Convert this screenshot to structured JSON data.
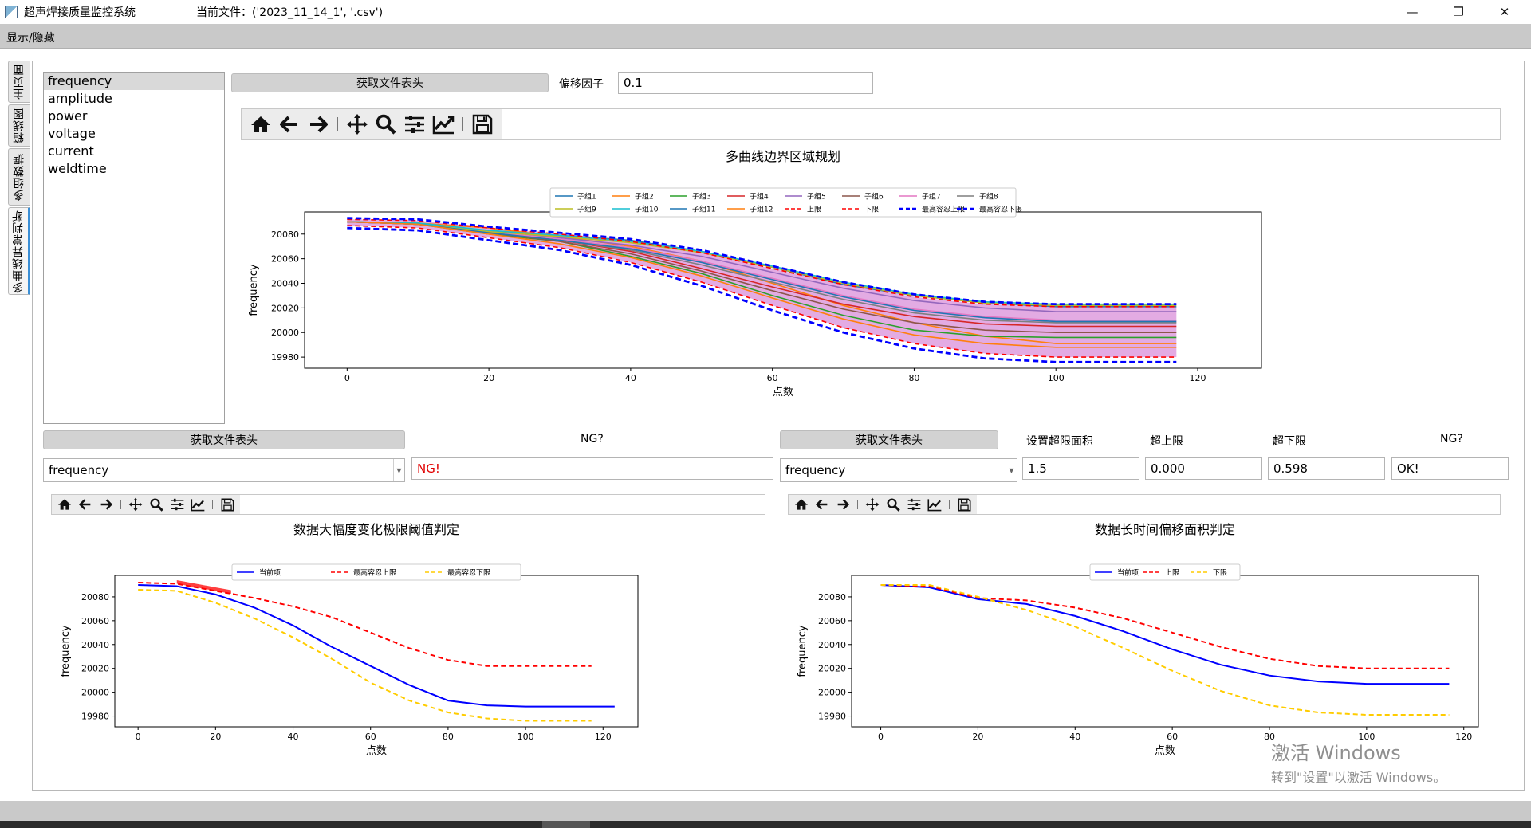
{
  "window": {
    "app_title": "超声焊接质量监控系统",
    "current_file": "当前文件：('2023_11_14_1', '.csv')",
    "minimize": "—",
    "restore": "❐",
    "close": "✕"
  },
  "menu": {
    "toggle": "显示/隐藏"
  },
  "tabs": [
    "主页面",
    "箱线图",
    "多组数据",
    "多曲线异常判断"
  ],
  "params": [
    "frequency",
    "amplitude",
    "power",
    "voltage",
    "current",
    "weldtime"
  ],
  "top": {
    "header_button": "获取文件表头",
    "offset_label": "偏移因子",
    "offset_value": "0.1"
  },
  "bottom_left": {
    "header_button": "获取文件表头",
    "ng_label": "NG?",
    "combo_value": "frequency",
    "ng_value": "NG!"
  },
  "bottom_right": {
    "header_button": "获取文件表头",
    "area_label": "设置超限面积",
    "upper_label": "超上限",
    "lower_label": "超下限",
    "ng_label": "NG?",
    "combo_value": "frequency",
    "area_value": "1.5",
    "upper_value": "0.000",
    "lower_value": "0.598",
    "ng_value": "OK!"
  },
  "watermark": {
    "line1": "激活 Windows",
    "line2": "转到\"设置\"以激活 Windows。"
  },
  "chart_data": [
    {
      "type": "line",
      "title": "多曲线边界区域规划",
      "xlabel": "点数",
      "ylabel": "frequency",
      "xlim": [
        -6,
        129
      ],
      "ylim": [
        19971,
        20098
      ],
      "xticks": [
        0,
        20,
        40,
        60,
        80,
        100,
        120
      ],
      "yticks": [
        19980,
        20000,
        20020,
        20040,
        20060,
        20080
      ],
      "legend": "top-center",
      "fill_between_limits_color": "#cc66cc",
      "series": [
        {
          "name": "子组1",
          "color": "#1f77b4",
          "x": [
            0,
            10,
            20,
            30,
            40,
            50,
            60,
            70,
            80,
            90,
            100,
            117
          ],
          "y": [
            20090,
            20089,
            20082,
            20079,
            20075,
            20066,
            20053,
            20039,
            20030,
            20024,
            20021,
            20021
          ]
        },
        {
          "name": "子组2",
          "color": "#ff7f0e",
          "x": [
            0,
            10,
            20,
            30,
            40,
            50,
            60,
            70,
            80,
            90,
            100,
            117
          ],
          "y": [
            20090,
            20089,
            20085,
            20078,
            20070,
            20058,
            20040,
            20022,
            20008,
            19997,
            19991,
            19991
          ]
        },
        {
          "name": "子组3",
          "color": "#2ca02c",
          "x": [
            0,
            10,
            20,
            30,
            40,
            50,
            60,
            70,
            80,
            90,
            100,
            117
          ],
          "y": [
            20090,
            20088,
            20080,
            20074,
            20062,
            20048,
            20030,
            20014,
            20002,
            19997,
            19996,
            19996
          ]
        },
        {
          "name": "子组4",
          "color": "#d62728",
          "x": [
            0,
            10,
            20,
            30,
            40,
            50,
            60,
            70,
            80,
            90,
            100,
            117
          ],
          "y": [
            20090,
            20088,
            20081,
            20075,
            20066,
            20052,
            20037,
            20023,
            20013,
            20007,
            20005,
            20005
          ]
        },
        {
          "name": "子组5",
          "color": "#9467bd",
          "x": [
            0,
            10,
            20,
            30,
            40,
            50,
            60,
            70,
            80,
            90,
            100,
            117
          ],
          "y": [
            20090,
            20088,
            20082,
            20077,
            20071,
            20062,
            20049,
            20036,
            20026,
            20020,
            20017,
            20017
          ]
        },
        {
          "name": "子组6",
          "color": "#8c564b",
          "x": [
            0,
            10,
            20,
            30,
            40,
            50,
            60,
            70,
            80,
            90,
            100,
            117
          ],
          "y": [
            20090,
            20088,
            20081,
            20074,
            20064,
            20050,
            20034,
            20019,
            20008,
            20002,
            20000,
            20000
          ]
        },
        {
          "name": "子组7",
          "color": "#e377c2",
          "x": [
            0,
            10,
            20,
            30,
            40,
            50,
            60,
            70,
            80,
            90,
            100,
            117
          ],
          "y": [
            20090,
            20088,
            20082,
            20076,
            20069,
            20058,
            20044,
            20030,
            20019,
            20013,
            20010,
            20010
          ]
        },
        {
          "name": "子组8",
          "color": "#7f7f7f",
          "x": [
            0,
            10,
            20,
            30,
            40,
            50,
            60,
            70,
            80,
            90,
            100,
            117
          ],
          "y": [
            20090,
            20088,
            20081,
            20075,
            20067,
            20055,
            20041,
            20027,
            20016,
            20010,
            20008,
            20008
          ]
        },
        {
          "name": "子组9",
          "color": "#bcbd22",
          "x": [
            0,
            10,
            20,
            30,
            40,
            50,
            60,
            70,
            80,
            90,
            100,
            117
          ],
          "y": [
            20090,
            20089,
            20082,
            20078,
            20073,
            20065,
            20053,
            20040,
            20030,
            20024,
            20022,
            20022
          ]
        },
        {
          "name": "子组10",
          "color": "#17becf",
          "x": [
            0,
            10,
            20,
            30,
            40,
            50,
            60,
            70,
            80,
            90,
            100,
            117
          ],
          "y": [
            20090,
            20089,
            20083,
            20079,
            20074,
            20066,
            20054,
            20041,
            20031,
            20025,
            20023,
            20023
          ]
        },
        {
          "name": "子组11",
          "color": "#1f77b4",
          "x": [
            0,
            10,
            20,
            30,
            40,
            50,
            60,
            70,
            80,
            90,
            100,
            117
          ],
          "y": [
            20090,
            20088,
            20081,
            20075,
            20068,
            20057,
            20043,
            20029,
            20018,
            20012,
            20009,
            20009
          ]
        },
        {
          "name": "子组12",
          "color": "#ff7f0e",
          "x": [
            0,
            10,
            20,
            30,
            40,
            50,
            60,
            70,
            80,
            90,
            100,
            117
          ],
          "y": [
            20090,
            20088,
            20080,
            20072,
            20061,
            20046,
            20028,
            20011,
            19998,
            19991,
            19988,
            19988
          ]
        },
        {
          "name": "上限",
          "color": "#ff0000",
          "dash": true,
          "x": [
            0,
            10,
            20,
            30,
            40,
            50,
            60,
            70,
            80,
            90,
            100,
            117
          ],
          "y": [
            20092,
            20091,
            20085,
            20080,
            20074,
            20065,
            20052,
            20039,
            20029,
            20023,
            20021,
            20021
          ]
        },
        {
          "name": "下限",
          "color": "#ff0000",
          "dash": true,
          "x": [
            0,
            10,
            20,
            30,
            40,
            50,
            60,
            70,
            80,
            90,
            100,
            117
          ],
          "y": [
            20087,
            20085,
            20077,
            20069,
            20057,
            20041,
            20022,
            20004,
            19991,
            19983,
            19980,
            19980
          ]
        },
        {
          "name": "最高容忍上限",
          "color": "#0000ff",
          "dash": true,
          "thick": true,
          "x": [
            0,
            10,
            20,
            30,
            40,
            50,
            60,
            70,
            80,
            90,
            100,
            117
          ],
          "y": [
            20093,
            20092,
            20086,
            20081,
            20076,
            20067,
            20054,
            20041,
            20031,
            20025,
            20023,
            20023
          ]
        },
        {
          "name": "最高容忍下限",
          "color": "#0000ff",
          "dash": true,
          "thick": true,
          "x": [
            0,
            10,
            20,
            30,
            40,
            50,
            60,
            70,
            80,
            90,
            100,
            117
          ],
          "y": [
            20085,
            20083,
            20075,
            20067,
            20055,
            20038,
            20018,
            20000,
            19987,
            19979,
            19976,
            19976
          ]
        }
      ]
    },
    {
      "type": "line",
      "title": "数据大幅度变化极限阈值判定",
      "xlabel": "点数",
      "ylabel": "frequency",
      "xlim": [
        -6,
        129
      ],
      "ylim": [
        19971,
        20098
      ],
      "xticks": [
        0,
        20,
        40,
        60,
        80,
        100,
        120
      ],
      "yticks": [
        19980,
        20000,
        20020,
        20040,
        20060,
        20080
      ],
      "legend": "top-center",
      "exceed_fill_color": "#ff0000",
      "series": [
        {
          "name": "当前项",
          "color": "#0000ff",
          "x": [
            0,
            10,
            20,
            30,
            40,
            50,
            60,
            70,
            80,
            90,
            100,
            110,
            123
          ],
          "y": [
            20090,
            20089,
            20082,
            20071,
            20056,
            20038,
            20022,
            20006,
            19993,
            19989,
            19988,
            19988,
            19988
          ]
        },
        {
          "name": "最高容忍上限",
          "color": "#ff0000",
          "dash": true,
          "x": [
            0,
            10,
            20,
            30,
            40,
            50,
            60,
            70,
            80,
            90,
            100,
            117
          ],
          "y": [
            20092,
            20091,
            20085,
            20079,
            20072,
            20063,
            20050,
            20037,
            20027,
            20022,
            20022,
            20022
          ]
        },
        {
          "name": "最高容忍下限",
          "color": "#ffcc00",
          "dash": true,
          "x": [
            0,
            10,
            20,
            30,
            40,
            50,
            60,
            70,
            80,
            90,
            100,
            117
          ],
          "y": [
            20086,
            20085,
            20075,
            20062,
            20046,
            20028,
            20008,
            19993,
            19983,
            19978,
            19976,
            19976
          ]
        }
      ]
    },
    {
      "type": "line",
      "title": "数据长时间偏移面积判定",
      "xlabel": "点数",
      "ylabel": "frequency",
      "xlim": [
        -6,
        123
      ],
      "ylim": [
        19971,
        20098
      ],
      "xticks": [
        0,
        20,
        40,
        60,
        80,
        100,
        120
      ],
      "yticks": [
        19980,
        20000,
        20020,
        20040,
        20060,
        20080
      ],
      "legend": "top-center",
      "series": [
        {
          "name": "当前项",
          "color": "#0000ff",
          "x": [
            0,
            10,
            20,
            30,
            40,
            50,
            60,
            70,
            80,
            90,
            100,
            117
          ],
          "y": [
            20090,
            20088,
            20078,
            20074,
            20064,
            20051,
            20036,
            20023,
            20014,
            20009,
            20007,
            20007
          ]
        },
        {
          "name": "上限",
          "color": "#ff0000",
          "dash": true,
          "x": [
            0,
            10,
            20,
            30,
            40,
            50,
            60,
            70,
            80,
            90,
            100,
            117
          ],
          "y": [
            20090,
            20089,
            20079,
            20077,
            20071,
            20062,
            20050,
            20038,
            20028,
            20022,
            20020,
            20020
          ]
        },
        {
          "name": "下限",
          "color": "#ffcc00",
          "dash": true,
          "x": [
            0,
            10,
            20,
            30,
            40,
            50,
            60,
            70,
            80,
            90,
            100,
            117
          ],
          "y": [
            20090,
            20090,
            20080,
            20069,
            20055,
            20037,
            20018,
            20001,
            19989,
            19983,
            19981,
            19981
          ]
        }
      ]
    }
  ]
}
